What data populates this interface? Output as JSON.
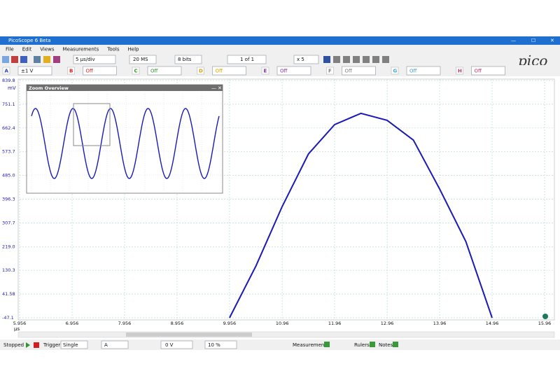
{
  "window": {
    "title": "PicoScope 6 Beta"
  },
  "menu": [
    "File",
    "Edit",
    "Views",
    "Measurements",
    "Tools",
    "Help"
  ],
  "toolbar": {
    "timebase": "5 µs/div",
    "samples": "20 MS",
    "resolution": "8 bits",
    "buffer": "1 of 1",
    "zoom": "x 5"
  },
  "logo": "pico",
  "channels": [
    {
      "name": "A",
      "range": "±1 V",
      "color": "#1f3fbf"
    },
    {
      "name": "B",
      "range": "Off",
      "color": "#d0201f"
    },
    {
      "name": "C",
      "range": "Off",
      "color": "#2a9a2a"
    },
    {
      "name": "D",
      "range": "Off",
      "color": "#d8a200"
    },
    {
      "name": "E",
      "range": "Off",
      "color": "#8a2aa8"
    },
    {
      "name": "F",
      "range": "Off",
      "color": "#808080"
    },
    {
      "name": "G",
      "range": "Off",
      "color": "#3aa0d8"
    },
    {
      "name": "H",
      "range": "Off",
      "color": "#c0306a"
    }
  ],
  "zoom_overview": {
    "title": "Zoom Overview"
  },
  "chart_data": {
    "type": "line",
    "x_unit": "µs",
    "y_unit": "mV",
    "color": "#1a1ab8",
    "grid": true,
    "x": [
      9.956,
      10.46,
      10.96,
      11.46,
      11.96,
      12.46,
      12.96,
      13.46,
      13.96,
      14.46,
      14.96
    ],
    "values": [
      -47.1,
      147,
      369,
      565,
      675,
      717,
      691,
      617,
      434,
      238,
      -47.1
    ],
    "xlim": [
      5.956,
      15.96
    ],
    "ylim": [
      -47.1,
      839.8
    ],
    "xticks": [
      5.956,
      6.956,
      7.956,
      8.956,
      9.956,
      10.96,
      11.96,
      12.96,
      13.96,
      14.96,
      15.96
    ],
    "yticks": [
      839.8,
      751.1,
      662.4,
      573.7,
      {
        "value": 485,
        "label": "485.0"
      },
      396.3,
      307.7,
      {
        "value": 219,
        "label": "219.0"
      },
      130.3,
      41.58,
      -47.1
    ]
  },
  "status": {
    "state": "Stopped",
    "trigger_label": "Trigger",
    "trigger_mode": "Single",
    "trigger_source": "A",
    "threshold": "0 V",
    "pre_trigger": "10 %",
    "measurements": "Measurements",
    "rulers": "Rulers",
    "notes": "Notes"
  }
}
